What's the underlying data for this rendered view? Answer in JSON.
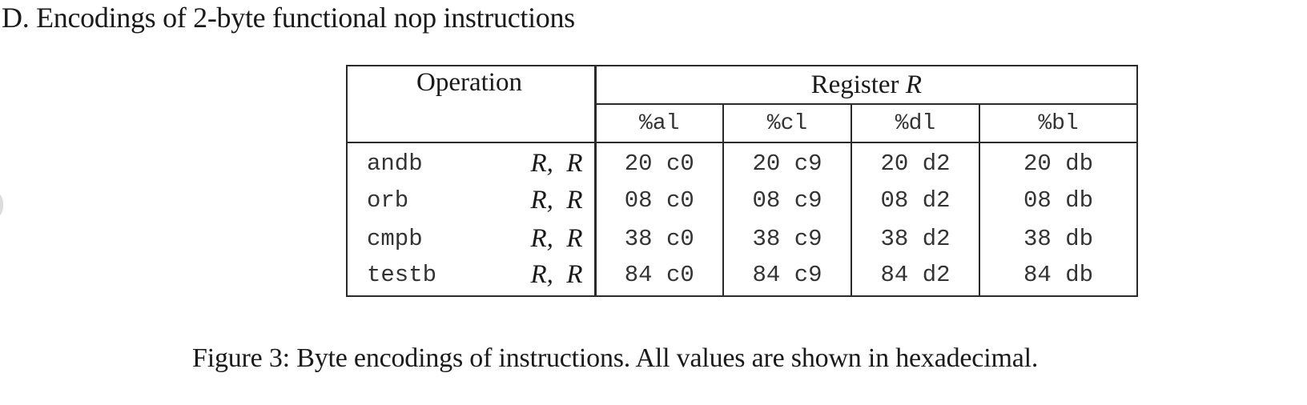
{
  "heading": "D. Encodings of 2-byte functional nop instructions",
  "table": {
    "operation_header": "Operation",
    "register_header_prefix": "Register ",
    "register_header_var": "R",
    "registers": [
      "%al",
      "%cl",
      "%dl",
      "%bl"
    ],
    "rows": [
      {
        "op": "andb",
        "args": "R,  R",
        "encodings": [
          "20 c0",
          "20 c9",
          "20 d2",
          "20 db"
        ]
      },
      {
        "op": "orb",
        "args": "R,  R",
        "encodings": [
          "08 c0",
          "08 c9",
          "08 d2",
          "08 db"
        ]
      },
      {
        "op": "cmpb",
        "args": "R,  R",
        "encodings": [
          "38 c0",
          "38 c9",
          "38 d2",
          "38 db"
        ]
      },
      {
        "op": "testb",
        "args": "R,  R",
        "encodings": [
          "84 c0",
          "84 c9",
          "84 d2",
          "84 db"
        ]
      }
    ]
  },
  "caption": "Figure 3: Byte encodings of instructions. All values are shown in hexadecimal."
}
